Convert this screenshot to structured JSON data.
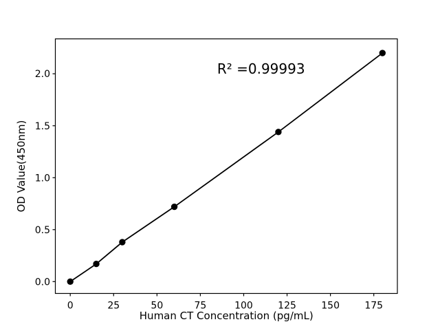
{
  "chart_data": {
    "type": "scatter",
    "title": "",
    "xlabel": "Human CT Concentration (pg/mL)",
    "ylabel": "OD Value(450nm)",
    "x": [
      0,
      15,
      30,
      60,
      120,
      180
    ],
    "y": [
      0.0,
      0.17,
      0.38,
      0.72,
      1.44,
      2.2
    ],
    "series_style": "line-with-markers",
    "annotation": {
      "text": "R² =0.99993",
      "x": 110,
      "y": 2.0
    },
    "xticks": [
      0,
      25,
      50,
      75,
      100,
      125,
      150,
      175
    ],
    "xtick_labels": [
      "0",
      "25",
      "50",
      "75",
      "100",
      "125",
      "150",
      "175"
    ],
    "yticks": [
      0.0,
      0.5,
      1.0,
      1.5,
      2.0
    ],
    "ytick_labels": [
      "0.0",
      "0.5",
      "1.0",
      "1.5",
      "2.0"
    ],
    "xlim": [
      -8.6,
      188.6
    ],
    "ylim": [
      -0.114,
      2.336
    ],
    "grid": false,
    "legend": null,
    "colors": {
      "line": "#000000",
      "marker": "#000000",
      "axis": "#000000",
      "text": "#000000",
      "background": "#ffffff"
    }
  }
}
